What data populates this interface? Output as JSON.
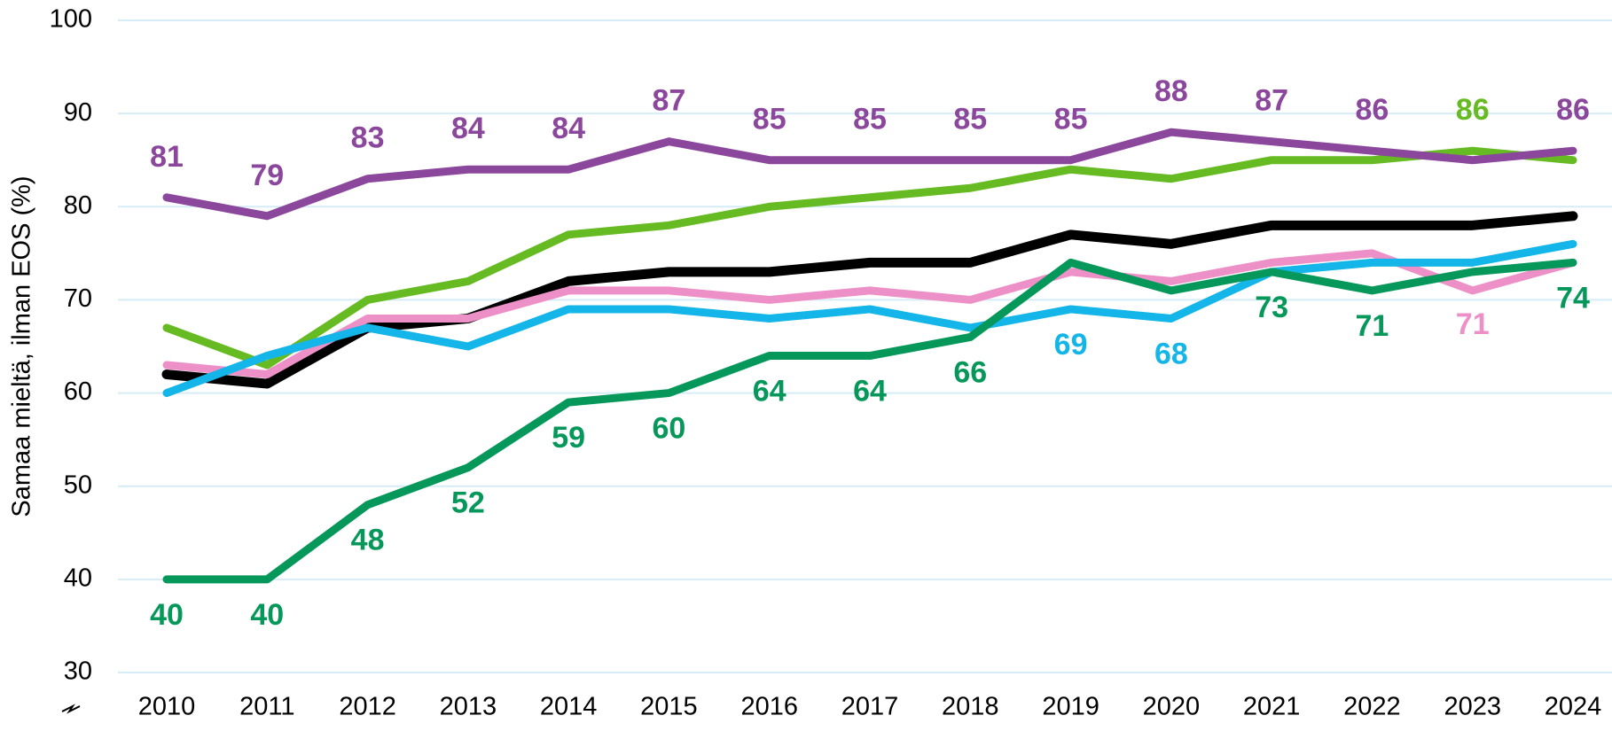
{
  "chart_data": {
    "type": "line",
    "y_label": "Samaa mieltä, ilman EOS (%)",
    "x": [
      "2010",
      "2011",
      "2012",
      "2013",
      "2014",
      "2015",
      "2016",
      "2017",
      "2018",
      "2019",
      "2020",
      "2021",
      "2022",
      "2023",
      "2024"
    ],
    "ylim": [
      30,
      100
    ],
    "yticks": [
      30,
      40,
      50,
      60,
      70,
      80,
      90,
      100
    ],
    "grid": true,
    "series": [
      {
        "color": "#66bb22",
        "values": [
          67,
          63,
          70,
          72,
          77,
          78,
          80,
          81,
          82,
          84,
          83,
          85,
          85,
          86,
          85
        ],
        "value_labels": [
          null,
          null,
          null,
          null,
          null,
          null,
          null,
          null,
          null,
          null,
          null,
          null,
          null,
          "86",
          null
        ]
      },
      {
        "color": "#000000",
        "values": [
          62,
          61,
          67,
          68,
          72,
          73,
          73,
          74,
          74,
          77,
          76,
          78,
          78,
          78,
          79
        ]
      },
      {
        "color": "#ee90c8",
        "values": [
          63,
          62,
          68,
          68,
          71,
          71,
          70,
          71,
          70,
          73,
          72,
          74,
          75,
          71,
          74
        ],
        "value_labels": [
          null,
          null,
          null,
          null,
          null,
          null,
          null,
          null,
          null,
          null,
          null,
          null,
          null,
          "71",
          null
        ]
      },
      {
        "color": "#14b5e8",
        "values": [
          60,
          64,
          67,
          65,
          69,
          69,
          68,
          69,
          67,
          69,
          68,
          73,
          74,
          74,
          76
        ],
        "value_labels": [
          null,
          null,
          null,
          null,
          null,
          null,
          null,
          null,
          null,
          "69",
          "68",
          null,
          null,
          null,
          null
        ]
      },
      {
        "color": "#06985a",
        "values": [
          40,
          40,
          48,
          52,
          59,
          60,
          64,
          64,
          66,
          74,
          71,
          73,
          71,
          73,
          74
        ],
        "value_labels": [
          "40",
          "40",
          "48",
          "52",
          "59",
          "60",
          "64",
          "64",
          "66",
          null,
          null,
          "73",
          "71",
          null,
          "74"
        ]
      },
      {
        "color": "#8b479b",
        "values": [
          81,
          79,
          83,
          84,
          84,
          87,
          85,
          85,
          85,
          85,
          88,
          87,
          86,
          85,
          86
        ],
        "value_labels": [
          "81",
          "79",
          "83",
          "84",
          "84",
          "87",
          "85",
          "85",
          "85",
          "85",
          "88",
          "87",
          "86",
          null,
          "86"
        ]
      }
    ]
  }
}
